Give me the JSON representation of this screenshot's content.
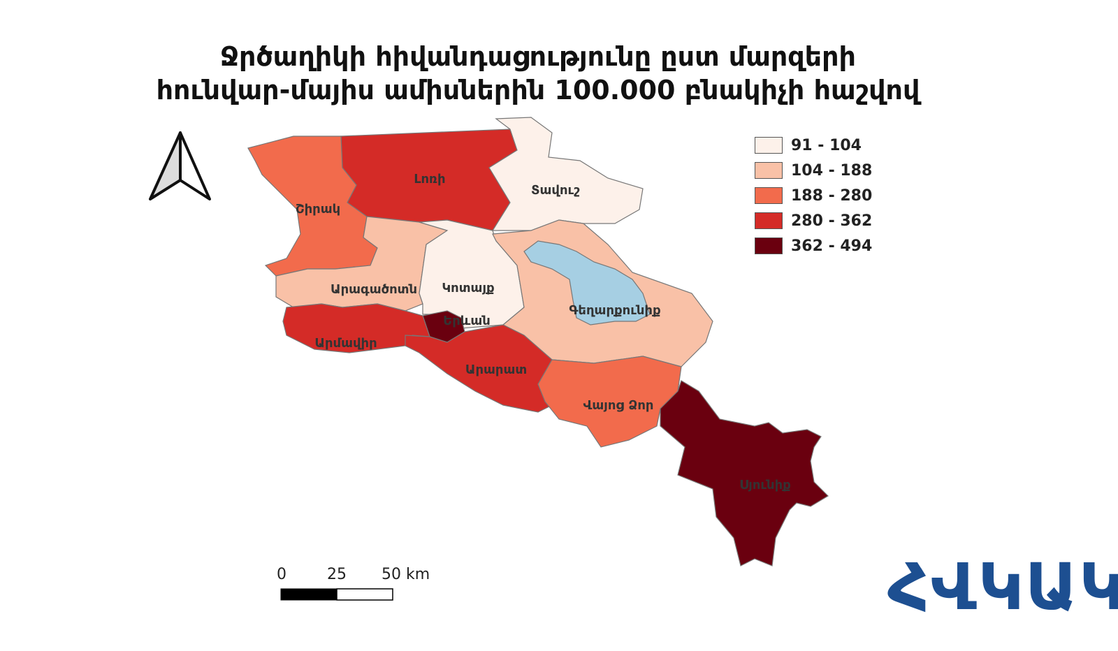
{
  "title": {
    "line1": "Ջրծաղիկի հիվանդացությունը ըստ մարզերի",
    "line2": "հունվար-մայիս ամիսներին 100.000 բնակիչի հաշվով"
  },
  "legend": [
    {
      "label": "91 - 104",
      "color": "#fdf1ea"
    },
    {
      "label": "104 - 188",
      "color": "#f9c1a7"
    },
    {
      "label": "188 - 280",
      "color": "#f26b4c"
    },
    {
      "label": "280 - 362",
      "color": "#d42b27"
    },
    {
      "label": "362 - 494",
      "color": "#6a000f"
    }
  ],
  "regions": [
    {
      "name": "Լոռի",
      "class": "280 - 362"
    },
    {
      "name": "Տավուշ",
      "class": "91 - 104"
    },
    {
      "name": "Շիրակ",
      "class": "188 - 280"
    },
    {
      "name": "Արագածոտն",
      "class": "104 - 188"
    },
    {
      "name": "Կոտայք",
      "class": "91 - 104"
    },
    {
      "name": "Գեղարքունիք",
      "class": "104 - 188"
    },
    {
      "name": "Երևան",
      "class": "362 - 494"
    },
    {
      "name": "Արմավիր",
      "class": "280 - 362"
    },
    {
      "name": "Արարատ",
      "class": "280 - 362"
    },
    {
      "name": "Վայոց Ձոր",
      "class": "188 - 280"
    },
    {
      "name": "Սյունիք",
      "class": "362 - 494"
    }
  ],
  "lake_color": "#a6cfe3",
  "scale": {
    "t0": "0",
    "t1": "25",
    "t2": "50 km"
  },
  "north_arrow": "north-arrow-icon",
  "logo": "ՀՎԿԱԿ"
}
